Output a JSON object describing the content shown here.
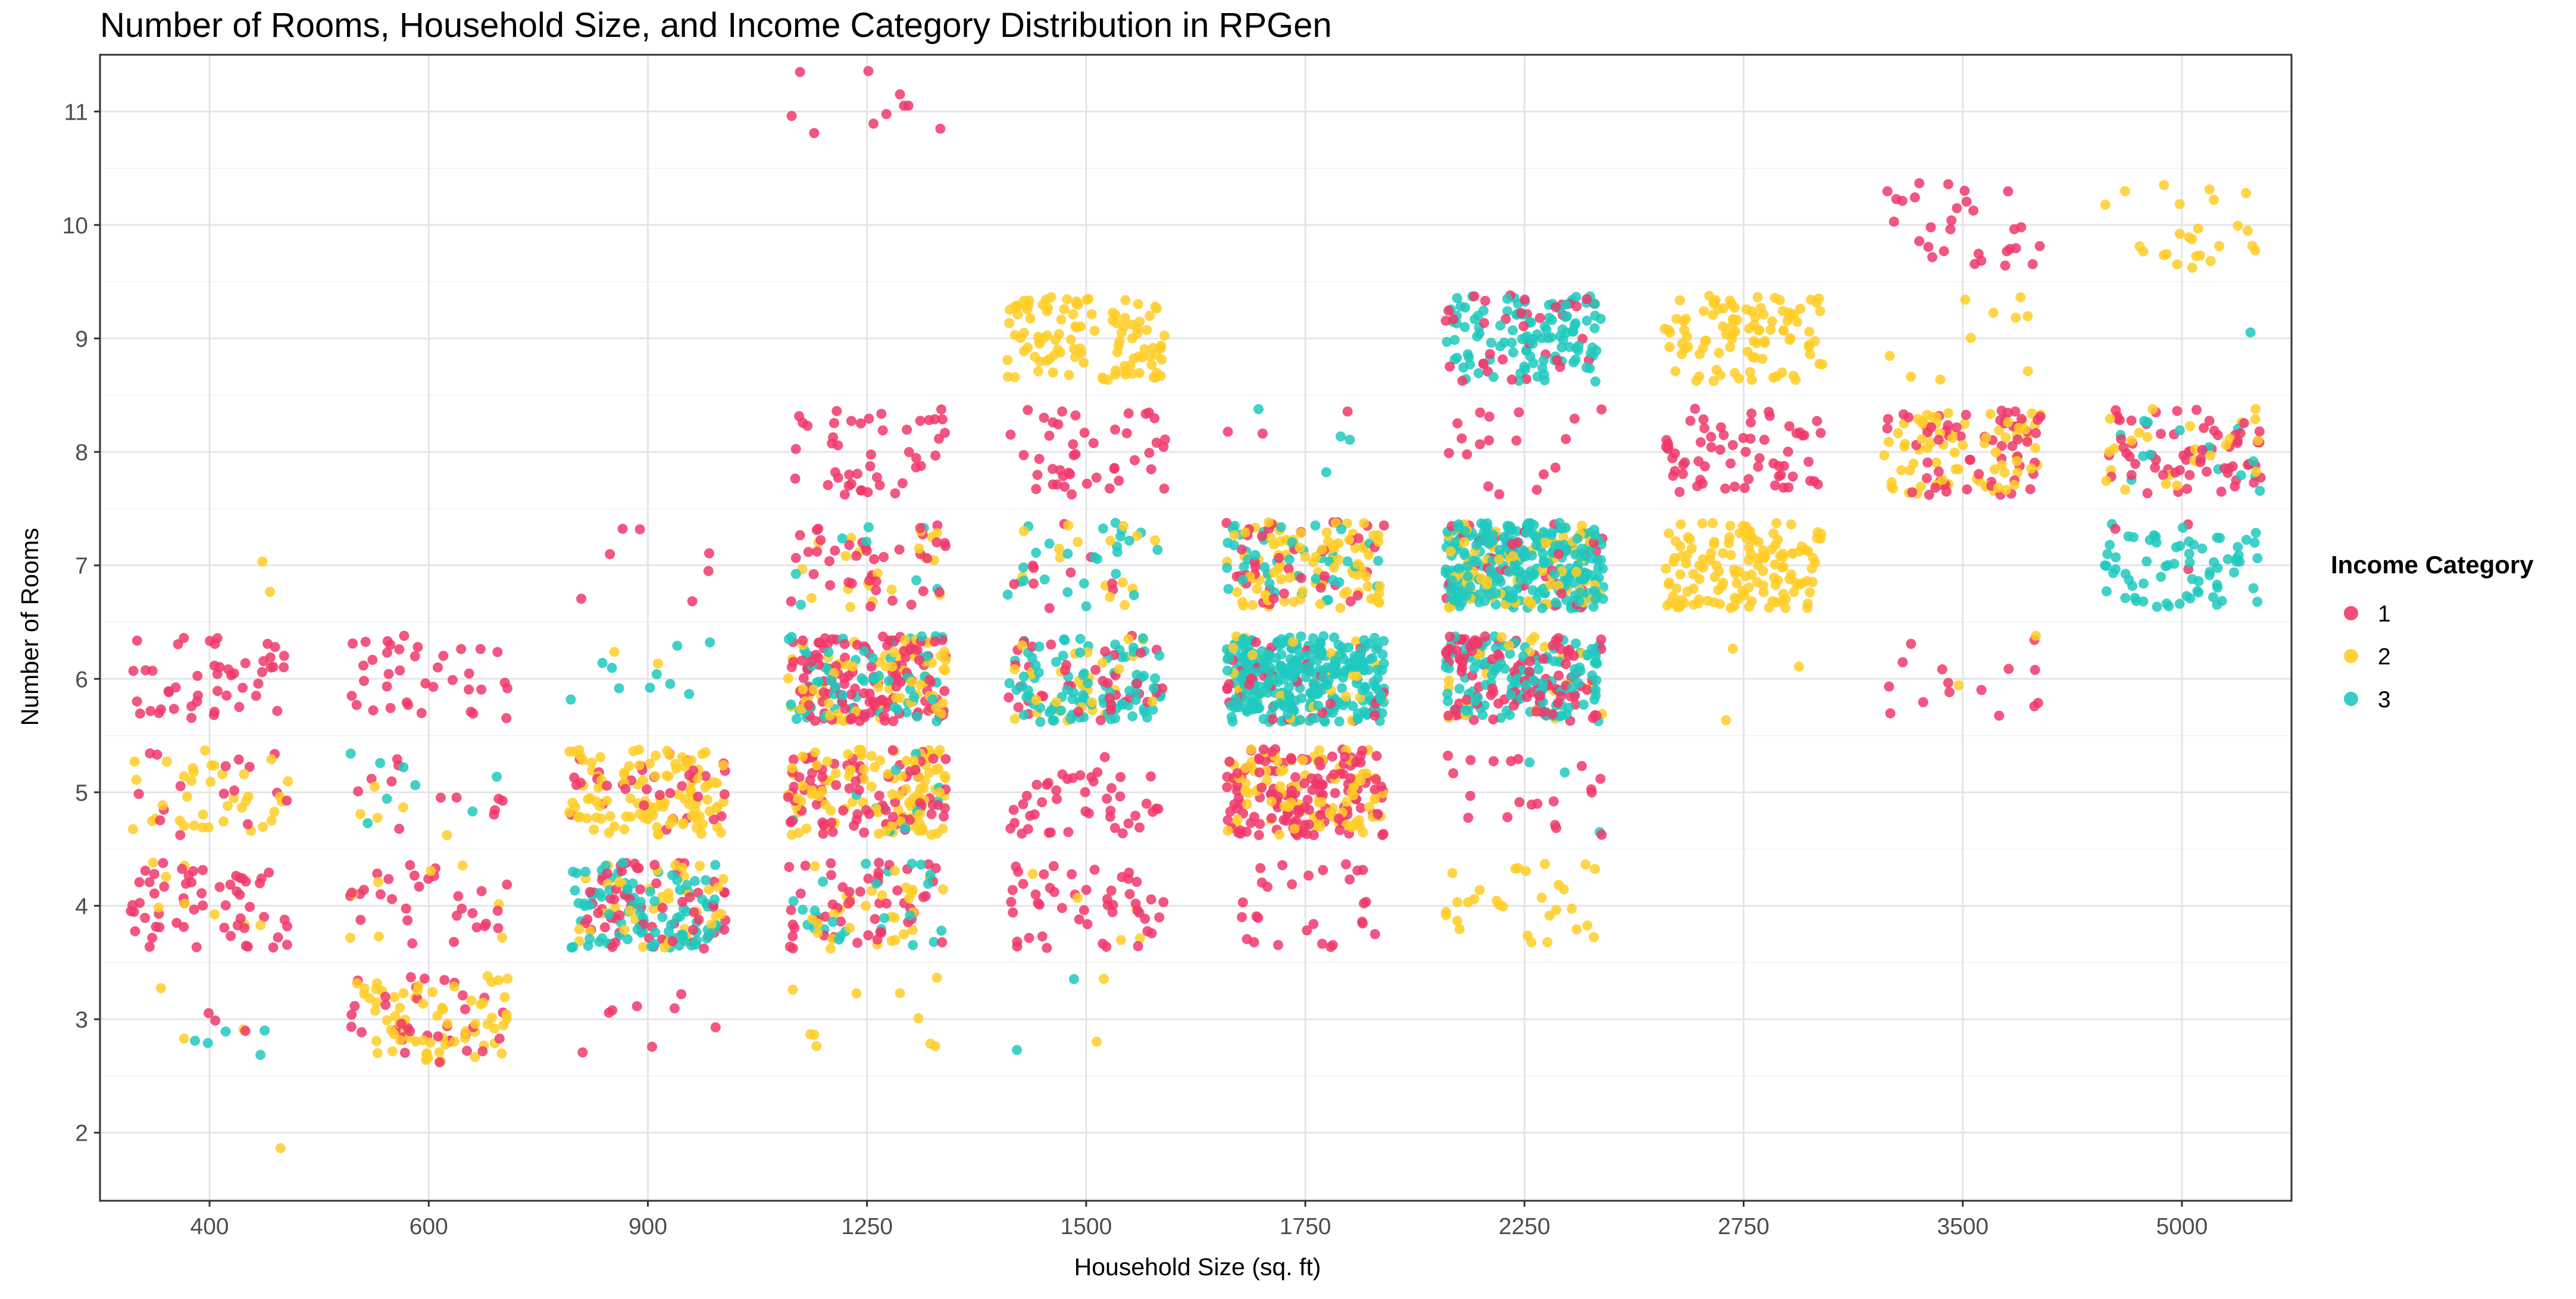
{
  "chart_data": {
    "type": "scatter",
    "subtype": "jittered categorical scatter",
    "title": "Number of Rooms, Household Size, and Income Category Distribution in RPGen",
    "xlabel": "Household Size (sq. ft)",
    "ylabel": "Number of Rooms",
    "categories": [
      "400",
      "600",
      "900",
      "1250",
      "1500",
      "1750",
      "2250",
      "2750",
      "3500",
      "5000"
    ],
    "ylim": [
      1.4,
      11.5
    ],
    "yticks": [
      2,
      3,
      4,
      5,
      6,
      7,
      8,
      9,
      10,
      11
    ],
    "grid": true,
    "jitter": {
      "x": 0.36,
      "y": 0.38
    },
    "legend": {
      "title": "Income Category",
      "placement": "right",
      "entries": [
        {
          "name": "1",
          "color": "#F0386B"
        },
        {
          "name": "2",
          "color": "#FFCC26"
        },
        {
          "name": "3",
          "color": "#20C9BE"
        }
      ]
    },
    "series": [
      {
        "name": "1",
        "color": "#F0386B",
        "cells": [
          {
            "x": "400",
            "y": 6,
            "count": 48
          },
          {
            "x": "400",
            "y": 5,
            "count": 16
          },
          {
            "x": "400",
            "y": 4,
            "count": 58
          },
          {
            "x": "400",
            "y": 3,
            "count": 3
          },
          {
            "x": "600",
            "y": 6,
            "count": 38
          },
          {
            "x": "600",
            "y": 5,
            "count": 12
          },
          {
            "x": "600",
            "y": 4,
            "count": 30
          },
          {
            "x": "600",
            "y": 3,
            "count": 35
          },
          {
            "x": "900",
            "y": 7,
            "count": 7
          },
          {
            "x": "900",
            "y": 5,
            "count": 35
          },
          {
            "x": "900",
            "y": 4,
            "count": 65
          },
          {
            "x": "900",
            "y": 3,
            "count": 8
          },
          {
            "x": "1250",
            "y": 11,
            "count": 10
          },
          {
            "x": "1250",
            "y": 8,
            "count": 45
          },
          {
            "x": "1250",
            "y": 7,
            "count": 40
          },
          {
            "x": "1250",
            "y": 6,
            "count": 130
          },
          {
            "x": "1250",
            "y": 5,
            "count": 80
          },
          {
            "x": "1250",
            "y": 4,
            "count": 50
          },
          {
            "x": "1500",
            "y": 8,
            "count": 45
          },
          {
            "x": "1500",
            "y": 7,
            "count": 10
          },
          {
            "x": "1500",
            "y": 6,
            "count": 40
          },
          {
            "x": "1500",
            "y": 5,
            "count": 45
          },
          {
            "x": "1500",
            "y": 4,
            "count": 48
          },
          {
            "x": "1750",
            "y": 8,
            "count": 3
          },
          {
            "x": "1750",
            "y": 7,
            "count": 40
          },
          {
            "x": "1750",
            "y": 6,
            "count": 40
          },
          {
            "x": "1750",
            "y": 5,
            "count": 150
          },
          {
            "x": "1750",
            "y": 4,
            "count": 28
          },
          {
            "x": "2250",
            "y": 9,
            "count": 35
          },
          {
            "x": "2250",
            "y": 8,
            "count": 18
          },
          {
            "x": "2250",
            "y": 7,
            "count": 35
          },
          {
            "x": "2250",
            "y": 6,
            "count": 110
          },
          {
            "x": "2250",
            "y": 5,
            "count": 20
          },
          {
            "x": "2750",
            "y": 8,
            "count": 65
          },
          {
            "x": "3500",
            "y": 10,
            "count": 30
          },
          {
            "x": "3500",
            "y": 8,
            "count": 60
          },
          {
            "x": "3500",
            "y": 6,
            "count": 15
          },
          {
            "x": "5000",
            "y": 8,
            "count": 65
          },
          {
            "x": "5000",
            "y": 7,
            "count": 3
          }
        ]
      },
      {
        "name": "2",
        "color": "#FFCC26",
        "cells": [
          {
            "x": "400",
            "y": 7,
            "count": 2
          },
          {
            "x": "400",
            "y": 5,
            "count": 38
          },
          {
            "x": "400",
            "y": 4,
            "count": 8
          },
          {
            "x": "400",
            "y": 3,
            "count": 3
          },
          {
            "x": "400",
            "y": 2,
            "count": 1
          },
          {
            "x": "600",
            "y": 5,
            "count": 5
          },
          {
            "x": "600",
            "y": 4,
            "count": 8
          },
          {
            "x": "600",
            "y": 3,
            "count": 70
          },
          {
            "x": "900",
            "y": 6,
            "count": 2
          },
          {
            "x": "900",
            "y": 5,
            "count": 110
          },
          {
            "x": "900",
            "y": 4,
            "count": 40
          },
          {
            "x": "1250",
            "y": 7,
            "count": 20
          },
          {
            "x": "1250",
            "y": 6,
            "count": 70
          },
          {
            "x": "1250",
            "y": 5,
            "count": 110
          },
          {
            "x": "1250",
            "y": 4,
            "count": 30
          },
          {
            "x": "1250",
            "y": 3,
            "count": 10
          },
          {
            "x": "1500",
            "y": 9,
            "count": 110
          },
          {
            "x": "1500",
            "y": 7,
            "count": 15
          },
          {
            "x": "1500",
            "y": 6,
            "count": 30
          },
          {
            "x": "1500",
            "y": 4,
            "count": 5
          },
          {
            "x": "1500",
            "y": 3,
            "count": 2
          },
          {
            "x": "1750",
            "y": 7,
            "count": 95
          },
          {
            "x": "1750",
            "y": 6,
            "count": 30
          },
          {
            "x": "1750",
            "y": 5,
            "count": 90
          },
          {
            "x": "2250",
            "y": 7,
            "count": 90
          },
          {
            "x": "2250",
            "y": 6,
            "count": 25
          },
          {
            "x": "2250",
            "y": 4,
            "count": 30
          },
          {
            "x": "2750",
            "y": 9,
            "count": 100
          },
          {
            "x": "2750",
            "y": 7,
            "count": 140
          },
          {
            "x": "2750",
            "y": 6,
            "count": 3
          },
          {
            "x": "3500",
            "y": 9,
            "count": 10
          },
          {
            "x": "3500",
            "y": 8,
            "count": 75
          },
          {
            "x": "3500",
            "y": 6,
            "count": 2
          },
          {
            "x": "5000",
            "y": 10,
            "count": 25
          },
          {
            "x": "5000",
            "y": 8,
            "count": 25
          }
        ]
      },
      {
        "name": "3",
        "color": "#20C9BE",
        "cells": [
          {
            "x": "400",
            "y": 3,
            "count": 5
          },
          {
            "x": "600",
            "y": 5,
            "count": 8
          },
          {
            "x": "900",
            "y": 6,
            "count": 10
          },
          {
            "x": "900",
            "y": 4,
            "count": 90
          },
          {
            "x": "1250",
            "y": 7,
            "count": 8
          },
          {
            "x": "1250",
            "y": 6,
            "count": 60
          },
          {
            "x": "1250",
            "y": 5,
            "count": 12
          },
          {
            "x": "1250",
            "y": 4,
            "count": 25
          },
          {
            "x": "1500",
            "y": 7,
            "count": 25
          },
          {
            "x": "1500",
            "y": 6,
            "count": 90
          },
          {
            "x": "1500",
            "y": 3,
            "count": 2
          },
          {
            "x": "1750",
            "y": 8,
            "count": 4
          },
          {
            "x": "1750",
            "y": 7,
            "count": 40
          },
          {
            "x": "1750",
            "y": 6,
            "count": 300
          },
          {
            "x": "2250",
            "y": 9,
            "count": 110
          },
          {
            "x": "2250",
            "y": 7,
            "count": 280
          },
          {
            "x": "2250",
            "y": 6,
            "count": 130
          },
          {
            "x": "2250",
            "y": 5,
            "count": 3
          },
          {
            "x": "5000",
            "y": 9,
            "count": 1
          },
          {
            "x": "5000",
            "y": 8,
            "count": 15
          },
          {
            "x": "5000",
            "y": 7,
            "count": 70
          }
        ]
      }
    ]
  }
}
